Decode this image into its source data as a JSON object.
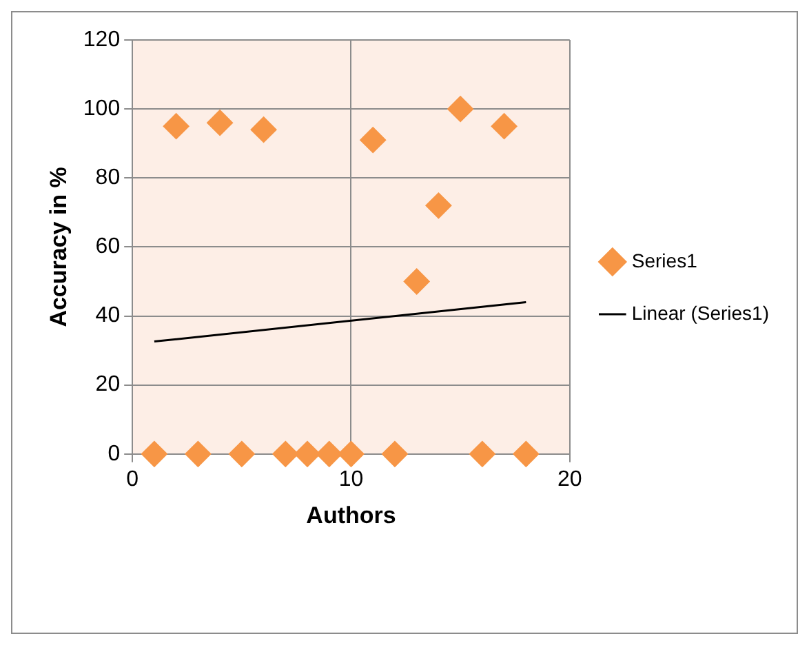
{
  "chart_data": {
    "type": "scatter",
    "xlabel": "Authors",
    "ylabel": "Accuracy in %",
    "x": [
      1,
      2,
      3,
      4,
      5,
      6,
      7,
      8,
      9,
      10,
      11,
      12,
      13,
      14,
      15,
      16,
      17,
      18
    ],
    "series": [
      {
        "name": "Series1",
        "color": "#f79646",
        "marker": "diamond",
        "values": [
          0,
          95,
          0,
          96,
          0,
          94,
          0,
          0,
          0,
          0,
          91,
          0,
          50,
          72,
          100,
          0,
          95,
          0
        ]
      },
      {
        "name": "Linear (Series1)",
        "type": "line",
        "color": "#000000",
        "marker": "none",
        "x": [
          1,
          18
        ],
        "values": [
          32.6,
          44
        ]
      }
    ],
    "xlim": [
      0,
      20
    ],
    "xticks": [
      0,
      10,
      20
    ],
    "ylim": [
      0,
      120
    ],
    "yticks": [
      0,
      20,
      40,
      60,
      80,
      100,
      120
    ],
    "grid": true,
    "legend": "right"
  }
}
